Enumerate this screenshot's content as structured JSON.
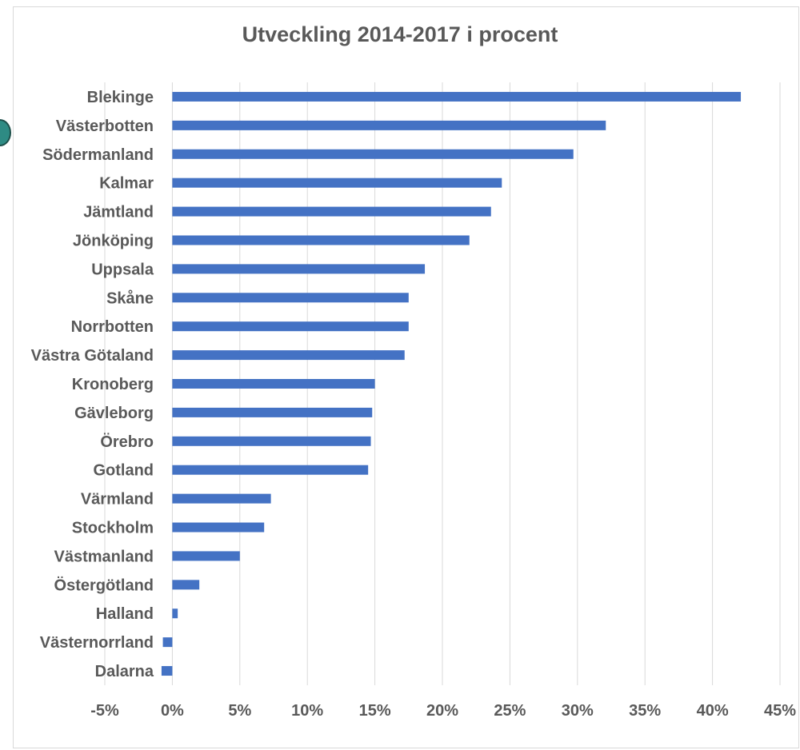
{
  "chart_data": {
    "type": "bar",
    "orientation": "horizontal",
    "title": "Utveckling 2014-2017 i procent",
    "categories": [
      "Blekinge",
      "Västerbotten",
      "Södermanland",
      "Kalmar",
      "Jämtland",
      "Jönköping",
      "Uppsala",
      "Skåne",
      "Norrbotten",
      "Västra Götaland",
      "Kronoberg",
      "Gävleborg",
      "Örebro",
      "Gotland",
      "Värmland",
      "Stockholm",
      "Västmanland",
      "Östergötland",
      "Halland",
      "Västernorrland",
      "Dalarna"
    ],
    "values": [
      42.1,
      32.1,
      29.7,
      24.4,
      23.6,
      22.0,
      18.7,
      17.5,
      17.5,
      17.2,
      15.0,
      14.8,
      14.7,
      14.5,
      7.3,
      6.8,
      5.0,
      2.0,
      0.4,
      -0.7,
      -0.8
    ],
    "xlim": [
      -5,
      45
    ],
    "xticks": [
      -5,
      0,
      5,
      10,
      15,
      20,
      25,
      30,
      35,
      40,
      45
    ],
    "xtick_labels": [
      "-5%",
      "0%",
      "5%",
      "10%",
      "15%",
      "20%",
      "25%",
      "30%",
      "35%",
      "40%",
      "45%"
    ],
    "grid": true,
    "legend": "none",
    "bar_color": "#4472c4"
  }
}
